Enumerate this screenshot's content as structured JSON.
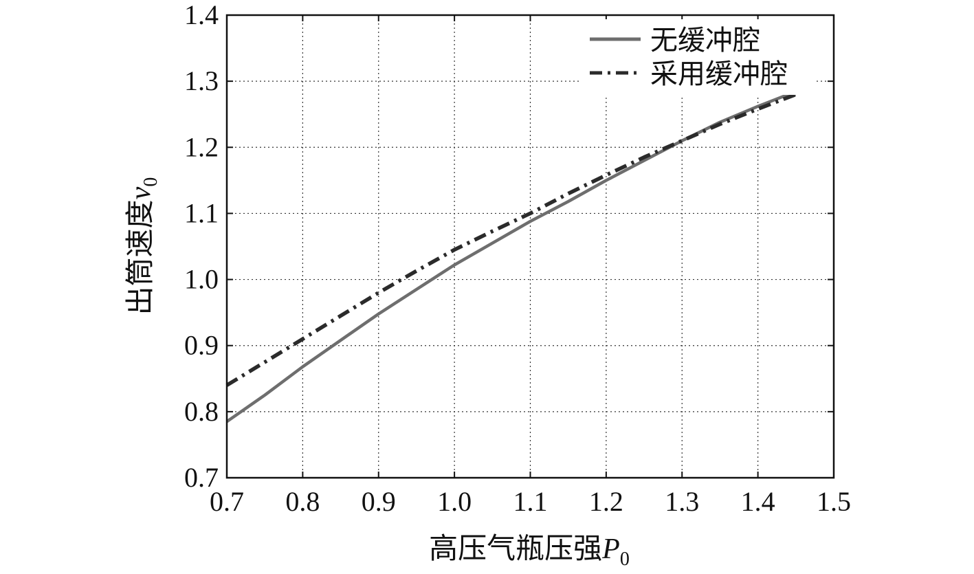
{
  "chart_data": {
    "type": "line",
    "xlabel": "高压气瓶压强",
    "xlabel_symbol": "P",
    "xlabel_subscript": "0",
    "ylabel": "出筒速度",
    "ylabel_symbol": "v",
    "ylabel_subscript": "0",
    "xlim": [
      0.7,
      1.5
    ],
    "ylim": [
      0.7,
      1.4
    ],
    "xticks": [
      "0.7",
      "0.8",
      "0.9",
      "1.0",
      "1.1",
      "1.2",
      "1.3",
      "1.4",
      "1.5"
    ],
    "yticks": [
      "0.7",
      "0.8",
      "0.9",
      "1.0",
      "1.1",
      "1.2",
      "1.3",
      "1.4"
    ],
    "grid": true,
    "legend_position": "top-right",
    "series": [
      {
        "name": "无缓冲腔",
        "style": "solid",
        "color": "#6e6e6e",
        "x": [
          0.7,
          0.75,
          0.8,
          0.85,
          0.9,
          0.95,
          1.0,
          1.05,
          1.1,
          1.15,
          1.2,
          1.25,
          1.3,
          1.35,
          1.4,
          1.44,
          1.45
        ],
        "y": [
          0.785,
          0.825,
          0.868,
          0.908,
          0.948,
          0.985,
          1.022,
          1.055,
          1.088,
          1.118,
          1.15,
          1.18,
          1.21,
          1.238,
          1.262,
          1.28,
          1.28
        ]
      },
      {
        "name": "采用缓冲腔",
        "style": "dash-dot",
        "color": "#2b2b2b",
        "x": [
          0.7,
          0.75,
          0.8,
          0.85,
          0.9,
          0.95,
          1.0,
          1.05,
          1.1,
          1.15,
          1.2,
          1.25,
          1.3,
          1.35,
          1.4,
          1.45,
          1.47
        ],
        "y": [
          0.84,
          0.875,
          0.91,
          0.945,
          0.98,
          1.013,
          1.045,
          1.073,
          1.1,
          1.13,
          1.158,
          1.185,
          1.21,
          1.235,
          1.258,
          1.28,
          1.288
        ]
      }
    ]
  }
}
